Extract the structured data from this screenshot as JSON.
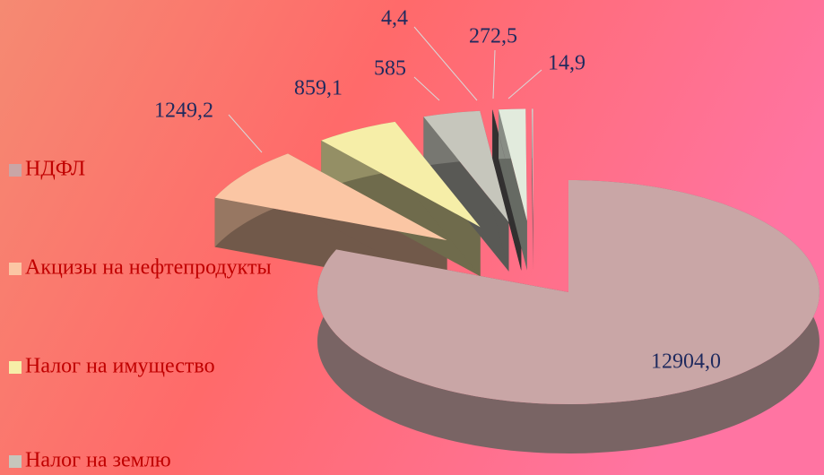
{
  "chart_data": {
    "type": "pie3d",
    "categories": [
      "НДФЛ",
      "Акцизы на нефтепродукты",
      "Налог на имущество",
      "Налог на землю",
      null,
      null,
      null
    ],
    "values": [
      12904.0,
      1249.2,
      859.1,
      585,
      4.4,
      272.5,
      14.9
    ],
    "value_labels": [
      "12904,0",
      "1249,2",
      "859,1",
      "585",
      "4,4",
      "272,5",
      "14,9"
    ],
    "colors": [
      "#c9a6a6",
      "#fbc6a4",
      "#f6eea8",
      "#c6c6bc",
      "#6e6a6a",
      "#e2ebdd",
      "#d8c8c8"
    ],
    "legend": "left"
  }
}
